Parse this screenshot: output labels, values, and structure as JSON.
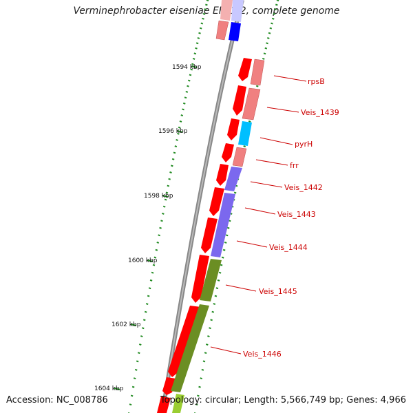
{
  "title": "Verminephrobacter eiseniae EF01-2, complete genome",
  "accession": "Accession: NC_008786",
  "footer": "Topology: circular; Length: 5,566,749 bp; Genes: 4,966",
  "colors": {
    "backbone": "#888888",
    "cds_red": "#ff0000",
    "cds_pink": "#f08080",
    "cds_blue": "#0000ff",
    "cds_lightblue": "#c8c8ff",
    "cds_cyan": "#00bfff",
    "cds_purple": "#7b68ee",
    "cds_olive": "#6b8e23",
    "label_red": "#cc0000",
    "tick_green": "#228b22"
  },
  "scale_labels": [
    {
      "text": "1594 kbp"
    },
    {
      "text": "1596 kbp"
    },
    {
      "text": "1598 kbp"
    },
    {
      "text": "1600 kbp"
    },
    {
      "text": "1602 kbp"
    },
    {
      "text": "1604 kbp"
    }
  ],
  "gene_labels": [
    {
      "text": "rpsB"
    },
    {
      "text": "Veis_1439"
    },
    {
      "text": "pyrH"
    },
    {
      "text": "frr"
    },
    {
      "text": "Veis_1442"
    },
    {
      "text": "Veis_1443"
    },
    {
      "text": "Veis_1444"
    },
    {
      "text": "Veis_1445"
    },
    {
      "text": "Veis_1446"
    }
  ]
}
